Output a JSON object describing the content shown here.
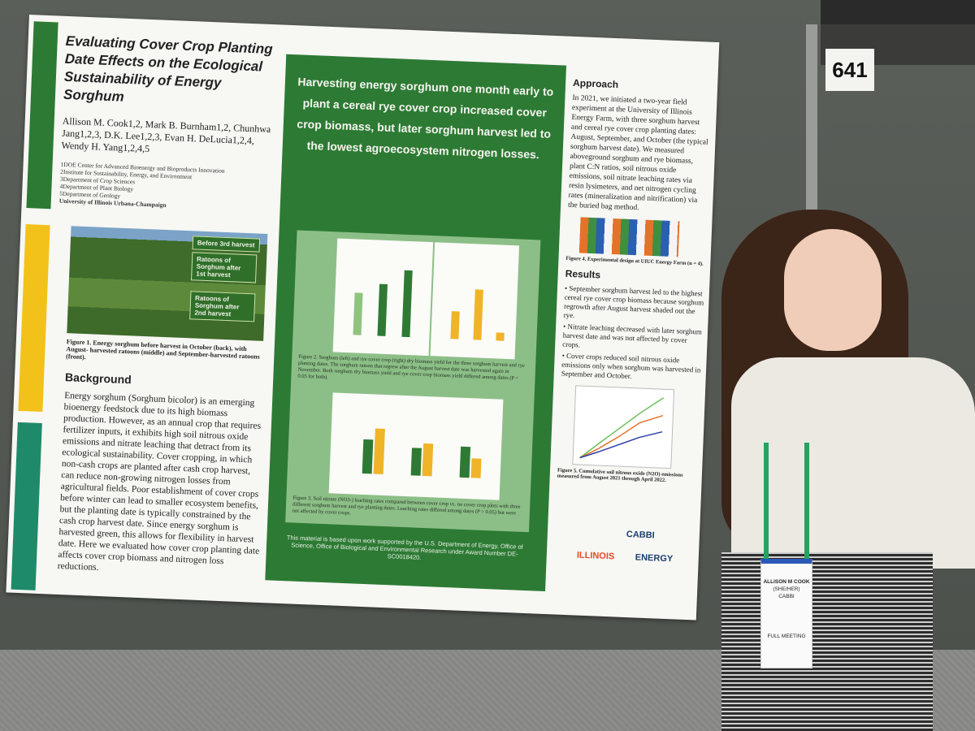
{
  "booth_number": "641",
  "poster": {
    "title": "Evaluating Cover Crop Planting Date Effects on the Ecological Sustainability of Energy Sorghum",
    "authors": "Allison M. Cook1,2, Mark B. Burnham1,2, Chunhwa Jang1,2,3, D.K. Lee1,2,3, Evan H. DeLucia1,2,4, Wendy H. Yang1,2,4,5",
    "affiliations": [
      "1DOE Center for Advanced Bioenergy and Bioproducts Innovation",
      "2Institute for Sustainability, Energy, and Environment",
      "3Department of Crop Sciences",
      "4Department of Plant Biology",
      "5Department of Geology",
      "University of Illinois Urbana-Champaign"
    ],
    "photo_tags": [
      "Before 3rd harvest",
      "Ratoons of Sorghum after 1st harvest",
      "Ratoons of Sorghum after 2nd harvest"
    ],
    "figure1_caption": "Figure 1. Energy sorghum before harvest in October (back), with August- harvested ratoons (middle) and September-harvested ratoons (front).",
    "background_heading": "Background",
    "background_text": "Energy sorghum (Sorghum bicolor) is an emerging bioenergy feedstock due to its high biomass production. However, as an annual crop that requires fertilizer inputs, it exhibits high soil nitrous oxide emissions and nitrate leaching that detract from its ecological sustainability. Cover cropping, in which non-cash crops are planted after cash crop harvest, can reduce non-growing nitrogen losses from agricultural fields. Poor establishment of cover crops before winter can lead to smaller ecosystem benefits, but the planting date is typically constrained by the cash crop harvest date. Since energy sorghum is harvested green, this allows for flexibility in harvest date. Here we evaluated how cover crop planting date affects cover crop biomass and nitrogen loss reductions.",
    "headline": "Harvesting energy sorghum one month early to plant a cereal rye cover crop increased cover crop biomass, but later sorghum harvest led to the lowest agroecosystem nitrogen losses.",
    "figure2_caption": "Figure 2. Sorghum (left) and rye cover crop (right) dry biomass yield for the three sorghum harvest and rye planting dates. The sorghum ratoon that regrew after the August harvest date was harvested again in November. Both sorghum dry biomass yield and rye cover crop biomass yield differed among dates (P < 0.05 for both).",
    "figure3_caption": "Figure 3. Soil nitrate (NO3-) leaching rates compared between cover crop vs. no cover crop plots with three different sorghum harvest and rye planting dates. Leaching rates differed among dates (P = 0.05) but were not affected by cover crops.",
    "funding": "This material is based upon work supported by the U.S. Department of Energy, Office of Science, Office of Biological and Environmental Research under Award Number DE-SC0018420.",
    "approach_heading": "Approach",
    "approach_text": "In 2021, we initiated a two-year field experiment at the University of Illinois Energy Farm, with three sorghum harvest and cereal rye cover crop planting dates: August, September, and October (the typical sorghum harvest date). We measured aboveground sorghum and rye biomass, plant C:N ratios, soil nitrous oxide emissions, soil nitrate leaching rates via resin lysimeters, and net nitrogen cycling rates (mineralization and nitrification) via the buried bag method.",
    "figure4_caption": "Figure 4. Experimental design at UIUC Energy Farm (n = 4).",
    "results_heading": "Results",
    "results": [
      "September sorghum harvest led to the highest cereal rye cover crop biomass because sorghum regrowth after August harvest shaded out the rye.",
      "Nitrate leaching decreased with later sorghum harvest date and was not affected by cover crops.",
      "Cover crops reduced soil nitrous oxide emissions only when sorghum was harvested in September and October."
    ],
    "figure5_caption": "Figure 5. Cumulative soil nitrous oxide (N2O) emissions measured from August 2021 through April 2022.",
    "logos": [
      "CABBI",
      "ILLINOIS",
      "ENERGY"
    ]
  },
  "badge": {
    "name": "ALLISON M COOK",
    "pronouns": "(SHE/HER)",
    "org": "CABBI",
    "type": "FULL MEETING"
  }
}
